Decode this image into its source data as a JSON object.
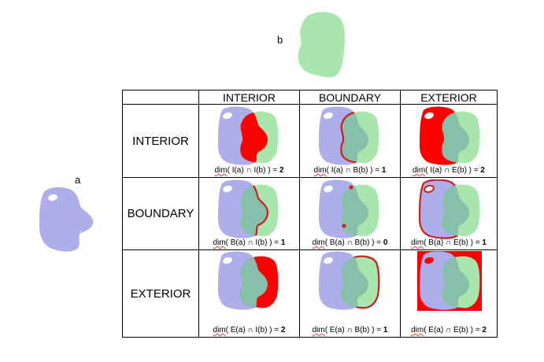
{
  "labels": {
    "a": "a",
    "b": "b"
  },
  "columns": [
    "INTERIOR",
    "BOUNDARY",
    "EXTERIOR"
  ],
  "rows": [
    "INTERIOR",
    "BOUNDARY",
    "EXTERIOR"
  ],
  "colors": {
    "shape_a": "#adaeea",
    "shape_b": "#a8e6ad",
    "overlap": "#86bfaa",
    "highlight": "#ff0000",
    "boundary": "#cc1e1e"
  },
  "cells": [
    [
      {
        "fn": "dim",
        "expr": "( I(a) ∩ I(b) ) = ",
        "value": "2"
      },
      {
        "fn": "dim",
        "expr": "( I(a) ∩ B(b) ) = ",
        "value": "1"
      },
      {
        "fn": "dim",
        "expr": "( I(a) ∩ E(b) ) = ",
        "value": "2"
      }
    ],
    [
      {
        "fn": "dim",
        "expr": "( B(a) ∩ I(b) ) = ",
        "value": "1"
      },
      {
        "fn": "dim",
        "expr": "( B(a) ∩ B(b) ) = ",
        "value": "0"
      },
      {
        "fn": "dim",
        "expr": "( B(a) ∩ E(b) ) = ",
        "value": "1"
      }
    ],
    [
      {
        "fn": "dim",
        "expr": "( E(a) ∩ I(b) ) = ",
        "value": "2"
      },
      {
        "fn": "dim",
        "expr": "( E(a) ∩ B(b) ) = ",
        "value": "1"
      },
      {
        "fn": "dim",
        "expr": "( E(a) ∩ E(b) ) = ",
        "value": "2"
      }
    ]
  ]
}
